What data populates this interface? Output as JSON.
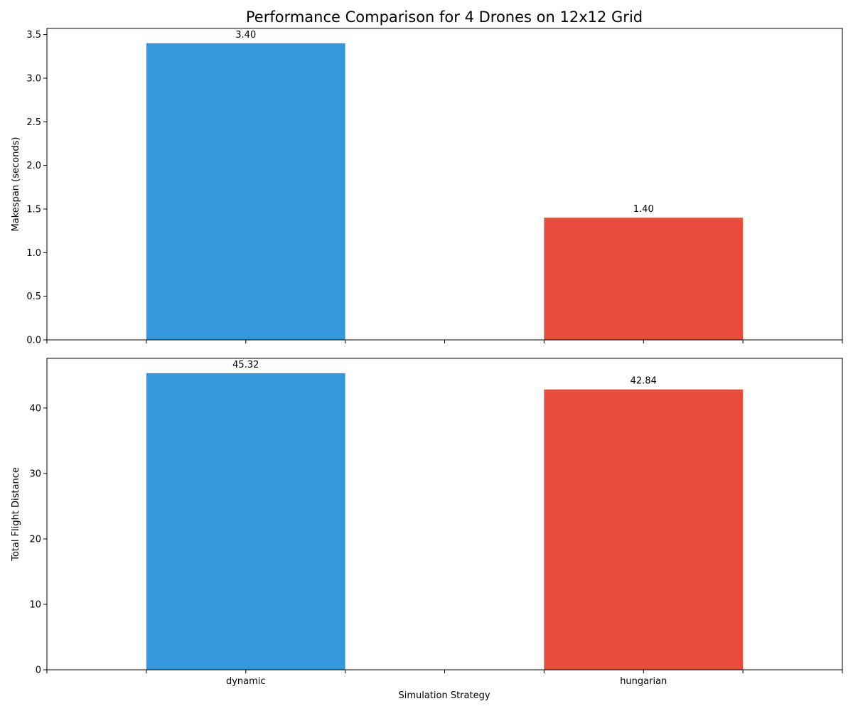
{
  "chart_data": {
    "type": "bar",
    "title": "Performance Comparison for 4 Drones on 12x12 Grid",
    "categories": [
      "dynamic",
      "hungarian"
    ],
    "xlabel": "Simulation Strategy",
    "colors": [
      "#3498db",
      "#e74c3c"
    ],
    "panels": [
      {
        "ylabel": "Makespan (seconds)",
        "values": [
          3.4,
          1.4
        ],
        "value_labels": [
          "3.40",
          "1.40"
        ],
        "ylim": [
          0,
          3.57
        ],
        "yticks": [
          0,
          0.5,
          1.0,
          1.5,
          2.0,
          2.5,
          3.0,
          3.5
        ],
        "ytick_labels": [
          "0.0",
          "0.5",
          "1.0",
          "1.5",
          "2.0",
          "2.5",
          "3.0",
          "3.5"
        ]
      },
      {
        "ylabel": "Total Flight Distance",
        "values": [
          45.32,
          42.84
        ],
        "value_labels": [
          "45.32",
          "42.84"
        ],
        "ylim": [
          0,
          47.59
        ],
        "yticks": [
          0,
          10,
          20,
          30,
          40
        ],
        "ytick_labels": [
          "0",
          "10",
          "20",
          "30",
          "40"
        ]
      }
    ],
    "grid": false,
    "legend": "none"
  }
}
